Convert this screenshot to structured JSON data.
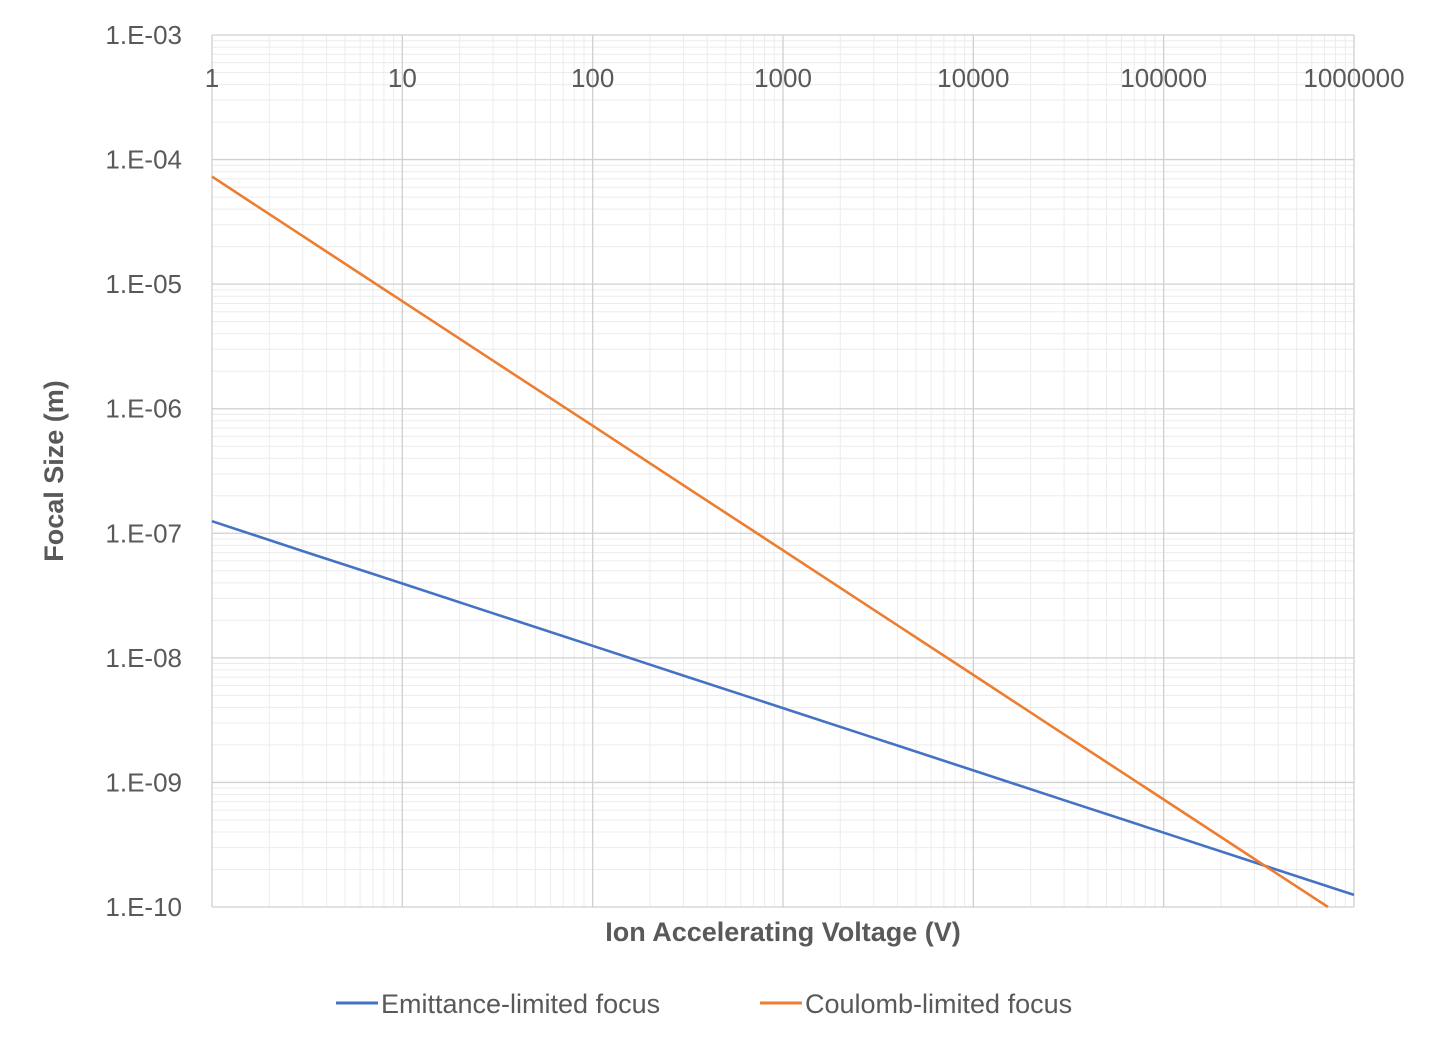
{
  "chart_data": {
    "type": "line",
    "title": "",
    "xlabel": "Ion Accelerating Voltage (V)",
    "ylabel": "Focal Size (m)",
    "xscale": "log",
    "yscale": "log",
    "xlim": [
      1,
      1000000
    ],
    "ylim": [
      1e-10,
      0.001
    ],
    "grid": true,
    "legend_position": "bottom",
    "x_tick_labels": [
      "1",
      "10",
      "100",
      "1000",
      "10000",
      "100000",
      "1000000"
    ],
    "x_ticks": [
      1,
      10,
      100,
      1000,
      10000,
      100000,
      1000000
    ],
    "y_tick_labels": [
      "1.E-03",
      "1.E-04",
      "1.E-05",
      "1.E-06",
      "1.E-07",
      "1.E-08",
      "1.E-09",
      "1.E-10"
    ],
    "y_ticks": [
      0.001,
      0.0001,
      1e-05,
      1e-06,
      1e-07,
      1e-08,
      1e-09,
      1e-10
    ],
    "series": [
      {
        "name": "Emittance-limited focus",
        "color": "#4472C4",
        "x": [
          1,
          3,
          10,
          30,
          100,
          300,
          1000,
          3000,
          10000,
          30000,
          100000,
          300000,
          1000000
        ],
        "y": [
          1.25e-07,
          7.2e-08,
          3.95e-08,
          2.28e-08,
          1.25e-08,
          7.2e-09,
          3.95e-09,
          2.28e-09,
          1.25e-09,
          7.2e-10,
          3.95e-10,
          2.28e-10,
          1.25e-10
        ]
      },
      {
        "name": "Coulomb-limited focus",
        "color": "#ED7D31",
        "x": [
          1,
          3,
          10,
          30,
          100,
          300,
          1000,
          3000,
          10000,
          30000,
          100000,
          300000,
          730000
        ],
        "y": [
          7.3e-05,
          2.43e-05,
          7.3e-06,
          2.43e-06,
          7.3e-07,
          2.43e-07,
          7.3e-08,
          2.43e-08,
          7.3e-09,
          2.43e-09,
          7.3e-10,
          2.43e-10,
          1e-10
        ]
      }
    ]
  }
}
